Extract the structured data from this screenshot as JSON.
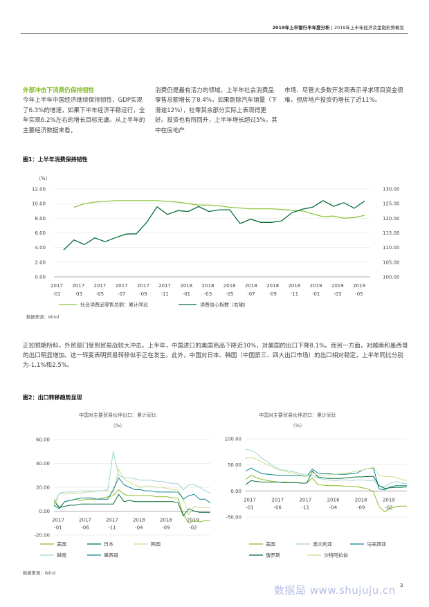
{
  "header": {
    "report_title": "2019年上市银行半年度分析",
    "separator": "|",
    "section_title": "2019年上半年经济及金融形势概览"
  },
  "intro": {
    "heading": "外部冲击下消费仍保持韧性",
    "col1": "今年上半年中国经济继续保持韧性，GDP实现了6.3%的增速，如果下半年经济平稳运行，全年实现6.2%左右的增长目标无虞。从上半年的主要经济数据来看，",
    "col2": "消费仍是最有活力的领域，上半年社会消费品零售总额增长了8.4%，如果剔除汽车销量（下滑逾12%），社零其余部分实际上表现得更好。投资也有所回升，上半年增长超过5%，其中在房地产",
    "col3": "市场、尽管大多数开发商表示寻求项目资金很难，但房地产投资仍增长了近11%。"
  },
  "figure1": {
    "title": "图1：上半年消费保持韧性",
    "source": "数据来源：Wind",
    "chart_data": {
      "type": "line",
      "title": "",
      "unit_label": "（%）",
      "x": [
        "2017-01",
        "2017-02",
        "2017-03",
        "2017-04",
        "2017-05",
        "2017-06",
        "2017-07",
        "2017-08",
        "2017-09",
        "2017-10",
        "2017-11",
        "2017-12",
        "2018-01",
        "2018-02",
        "2018-03",
        "2018-04",
        "2018-05",
        "2018-06",
        "2018-07",
        "2018-08",
        "2018-09",
        "2018-10",
        "2018-11",
        "2018-12",
        "2019-01",
        "2019-02",
        "2019-03",
        "2019-04",
        "2019-05",
        "2019-06"
      ],
      "x_tick_labels": [
        [
          "2017",
          "-01"
        ],
        [
          "2017",
          "-03"
        ],
        [
          "2017",
          "-05"
        ],
        [
          "2017",
          "-07"
        ],
        [
          "2017",
          "-09"
        ],
        [
          "2017",
          "-11"
        ],
        [
          "2018",
          "-01"
        ],
        [
          "2018",
          "-03"
        ],
        [
          "2018",
          "-05"
        ],
        [
          "2018",
          "-07"
        ],
        [
          "2018",
          "-09"
        ],
        [
          "2018",
          "-11"
        ],
        [
          "2019",
          "-01"
        ],
        [
          "2019",
          "-03"
        ],
        [
          "2019",
          "-05"
        ]
      ],
      "y_left": {
        "ticks": [
          "12.00",
          "10.00",
          "8.00",
          "6.00",
          "4.00",
          "2.00",
          "0.00"
        ],
        "ylim": [
          0,
          12
        ]
      },
      "y_right": {
        "ticks": [
          "130.00",
          "125.00",
          "120.00",
          "115.00",
          "110.00",
          "105.00",
          "100.00"
        ],
        "ylim": [
          100,
          130
        ]
      },
      "series": [
        {
          "name": "社会消费品零售总额：累计同比",
          "axis": "left",
          "color": "#8cc63f",
          "values": [
            null,
            9.5,
            10.0,
            10.2,
            10.3,
            10.4,
            10.4,
            10.4,
            10.4,
            10.4,
            10.3,
            10.2,
            10.0,
            9.8,
            9.8,
            9.7,
            9.5,
            9.4,
            9.3,
            9.3,
            9.3,
            9.2,
            9.1,
            9.0,
            8.6,
            8.2,
            8.3,
            8.0,
            8.1,
            8.4
          ]
        },
        {
          "name": "消费信心指数（右轴）",
          "axis": "right",
          "color": "#046a38",
          "values": [
            109.2,
            112.6,
            111.0,
            113.3,
            112.0,
            113.4,
            114.6,
            114.7,
            118.6,
            123.9,
            121.3,
            122.6,
            122.3,
            124.0,
            122.3,
            122.9,
            122.9,
            118.2,
            119.7,
            118.6,
            118.6,
            119.1,
            121.9,
            123.1,
            123.8,
            126.0,
            124.1,
            125.3,
            123.4,
            125.9
          ]
        }
      ]
    }
  },
  "paragraph2": "正如预期所料，外贸部门受到贸易战较大冲击。上半年，中国进口的美国商品下降近30%，对美国的出口下降8.1%。而另一方面，对越南和墨西哥的出口明显增加。这一转变表明贸易转移似乎正在发生。此外，中国对日本、韩国（中国第三、四大出口市场）的出口相对稳定，上半年同比分别为-1.1%和2.5%。",
  "figure2": {
    "title": "图2：出口转移趋势显现",
    "source": "数据来源：Wind",
    "chart_data": [
      {
        "type": "line",
        "title": "中国对主要贸易伙伴出口：累计同比",
        "unit_label": "（%）",
        "x_tick_labels": [
          [
            "2017",
            "-01"
          ],
          [
            "2017",
            "-06"
          ],
          [
            "2017",
            "-11"
          ],
          [
            "2018",
            "-04"
          ],
          [
            "2018",
            "-09"
          ],
          [
            "2019",
            "-02"
          ]
        ],
        "y_ticks": [
          "60.00",
          "40.00",
          "20.00",
          "0.00",
          "-20.00"
        ],
        "ylim": [
          -20,
          60
        ],
        "x_count": 30,
        "legend": [
          "美国",
          "日本",
          "韩国",
          "越南",
          "墨西哥"
        ],
        "series": [
          {
            "name": "美国",
            "color": "#86bc25",
            "values": [
              10,
              3,
              8,
              9,
              10,
              9,
              10,
              10,
              10,
              11,
              12,
              13,
              18,
              14,
              13,
              13,
              13,
              13,
              13,
              12,
              12,
              12,
              11,
              11,
              -3,
              -10,
              -8,
              -9,
              -8,
              -8
            ]
          },
          {
            "name": "日本",
            "color": "#046a38",
            "values": [
              8,
              3,
              4,
              5,
              5,
              6,
              6,
              6,
              6,
              6,
              6,
              6,
              14,
              8,
              9,
              8,
              8,
              8,
              8,
              8,
              8,
              8,
              8,
              7,
              -4,
              2,
              0,
              -1,
              -1,
              -1
            ]
          },
          {
            "name": "韩国",
            "color": "#c8df8c",
            "values": [
              3,
              15,
              14,
              15,
              15,
              15,
              16,
              16,
              17,
              17,
              17,
              15,
              35,
              27,
              24,
              22,
              20,
              21,
              21,
              20,
              20,
              19,
              18,
              18,
              10,
              -3,
              4,
              3,
              3,
              3
            ]
          },
          {
            "name": "越南",
            "color": "#9dd4cf",
            "values": [
              6,
              15,
              16,
              16,
              16,
              17,
              17,
              17,
              17,
              17,
              18,
              50,
              30,
              28,
              28,
              27,
              26,
              26,
              26,
              25,
              25,
              24,
              23,
              23,
              18,
              22,
              22,
              20,
              17,
              15
            ]
          },
          {
            "name": "墨西哥",
            "color": "#0d8390",
            "values": [
              5,
              2,
              8,
              9,
              10,
              11,
              11,
              11,
              10,
              10,
              10,
              18,
              28,
              22,
              20,
              18,
              18,
              17,
              17,
              16,
              16,
              16,
              16,
              16,
              10,
              13,
              14,
              10,
              10,
              7
            ]
          }
        ]
      },
      {
        "type": "line",
        "title": "中国对主要贸易伙伴进口：累计同比",
        "unit_label": "（%）",
        "x_tick_labels": [
          [
            "2017",
            "-01"
          ],
          [
            "2017",
            "-06"
          ],
          [
            "2017",
            "-11"
          ],
          [
            "2018",
            "-04"
          ],
          [
            "2018",
            "-09"
          ],
          [
            "2019",
            "-02"
          ]
        ],
        "y_ticks": [
          "100.00",
          "50.00",
          "0.00",
          "-50.00"
        ],
        "ylim": [
          -50,
          100
        ],
        "x_count": 30,
        "legend": [
          "美国",
          "澳大利亚",
          "马来西亚",
          "俄罗斯",
          "沙特阿拉伯"
        ],
        "series": [
          {
            "name": "美国",
            "color": "#86bc25",
            "values": [
              22,
              30,
              25,
              22,
              20,
              18,
              17,
              17,
              16,
              16,
              15,
              15,
              25,
              12,
              11,
              10,
              10,
              10,
              9,
              9,
              8,
              6,
              4,
              -2,
              -30,
              -40,
              -33,
              -30,
              -29,
              -29
            ]
          },
          {
            "name": "澳大利亚",
            "color": "#9dd4cf",
            "values": [
              80,
              78,
              72,
              62,
              55,
              48,
              42,
              40,
              38,
              36,
              33,
              30,
              30,
              25,
              22,
              21,
              20,
              21,
              21,
              20,
              21,
              21,
              20,
              20,
              10,
              8,
              15,
              18,
              15,
              14
            ]
          },
          {
            "name": "马来西亚",
            "color": "#0d8390",
            "values": [
              38,
              44,
              38,
              33,
              32,
              31,
              30,
              30,
              29,
              29,
              29,
              28,
              42,
              34,
              33,
              33,
              32,
              32,
              32,
              33,
              34,
              40,
              43,
              44,
              4,
              2,
              8,
              10,
              10,
              10
            ]
          },
          {
            "name": "俄罗斯",
            "color": "#046a38",
            "values": [
              12,
              20,
              18,
              17,
              17,
              17,
              17,
              16,
              16,
              16,
              15,
              15,
              38,
              27,
              25,
              24,
              24,
              24,
              25,
              26,
              27,
              27,
              28,
              28,
              10,
              5,
              6,
              7,
              7,
              8
            ]
          },
          {
            "name": "沙特阿拉伯",
            "color": "#c8df8c",
            "values": [
              62,
              65,
              60,
              55,
              50,
              45,
              40,
              38,
              35,
              33,
              30,
              28,
              35,
              30,
              30,
              31,
              32,
              33,
              34,
              36,
              38,
              40,
              43,
              45,
              30,
              28,
              28,
              26,
              22,
              20
            ]
          }
        ]
      }
    ]
  },
  "footer": {
    "page_number": "3",
    "watermark": "数据局 www.shujuju.cn"
  }
}
